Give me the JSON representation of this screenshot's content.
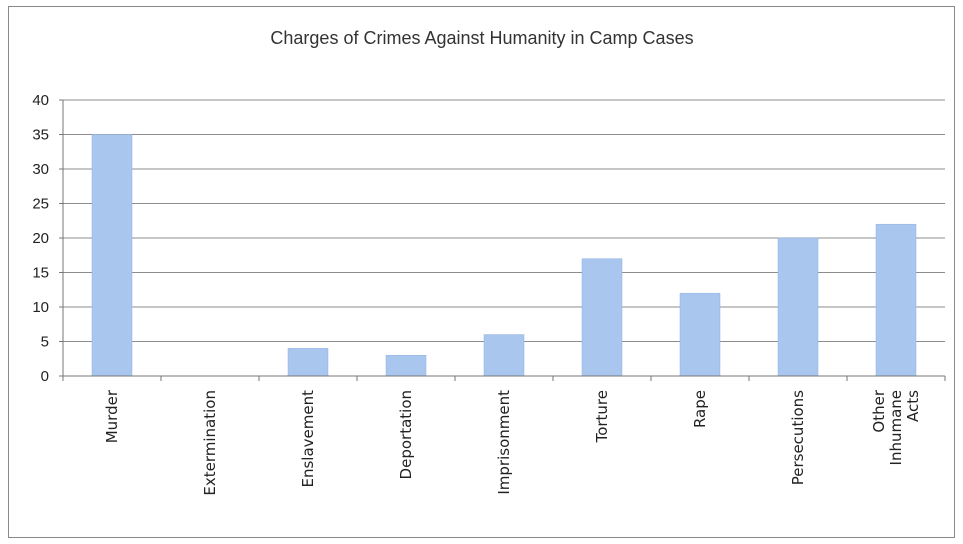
{
  "chart_data": {
    "type": "bar",
    "title": "Charges of Crimes Against Humanity in Camp Cases",
    "xlabel": "",
    "ylabel": "",
    "ylim": [
      0,
      40
    ],
    "yticks": [
      0,
      5,
      10,
      15,
      20,
      25,
      30,
      35,
      40
    ],
    "grid": true,
    "legend": "none",
    "categories": [
      "Murder",
      "Extermination",
      "Enslavement",
      "Deportation",
      "Imprisonment",
      "Torture",
      "Rape",
      "Persecutions",
      "Other Inhumane Acts"
    ],
    "category_lines": [
      [
        "Murder"
      ],
      [
        "Extermination"
      ],
      [
        "Enslavement"
      ],
      [
        "Deportation"
      ],
      [
        "Imprisonment"
      ],
      [
        "Torture"
      ],
      [
        "Rape"
      ],
      [
        "Persecutions"
      ],
      [
        "Other",
        "Inhumane",
        "Acts"
      ]
    ],
    "values": [
      35,
      0,
      4,
      3,
      6,
      17,
      12,
      20,
      22
    ],
    "colors": {
      "bar": "#a9c6ef",
      "bar_edge": "#8fb1e2",
      "grid": "#8c8c8c",
      "axis": "#777777"
    }
  }
}
